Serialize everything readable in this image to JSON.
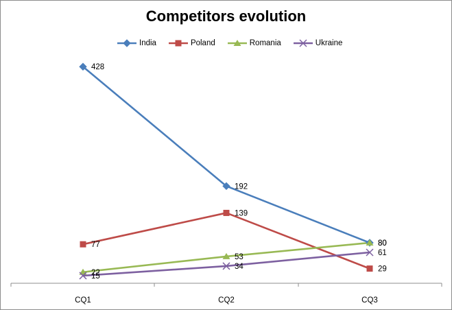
{
  "chart_data": {
    "type": "line",
    "title": "Competitors evolution",
    "categories": [
      "CQ1",
      "CQ2",
      "CQ3"
    ],
    "series": [
      {
        "name": "India",
        "values": [
          428,
          192,
          80
        ],
        "color": "#4a7ebb",
        "marker": "diamond"
      },
      {
        "name": "Poland",
        "values": [
          77,
          139,
          29
        ],
        "color": "#be4b48",
        "marker": "square"
      },
      {
        "name": "Romania",
        "values": [
          22,
          53,
          80
        ],
        "color": "#98b954",
        "marker": "triangle"
      },
      {
        "name": "Ukraine",
        "values": [
          15,
          34,
          61
        ],
        "color": "#7d60a0",
        "marker": "x"
      }
    ],
    "data_labels": [
      [
        "428",
        "192",
        "80"
      ],
      [
        "77",
        "139",
        "29"
      ],
      [
        "22",
        "53",
        "80"
      ],
      [
        "15",
        "34",
        "61"
      ]
    ],
    "ylim": [
      0,
      450
    ],
    "legend_position": "top",
    "grid": false,
    "xlabel": "",
    "ylabel": ""
  }
}
